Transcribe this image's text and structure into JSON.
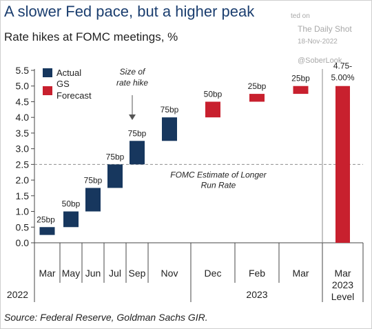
{
  "header": {
    "title": "A slower Fed pace, but a higher peak",
    "subtitle": "Rate hikes at FOMC meetings, %"
  },
  "watermark": {
    "line1": "ted on",
    "line2": "The Daily Shot",
    "line3": "18-Nov-2022",
    "line4": "@SoberLook"
  },
  "footer": {
    "source": "Source: Federal Reserve, Goldman Sachs GIR."
  },
  "colors": {
    "actual": "#17375e",
    "forecast": "#c8202e",
    "title": "#1b3e6f",
    "dashed_line": "#8c8c8c"
  },
  "chart_data": {
    "type": "bar",
    "subtype": "waterfall",
    "title": "Rate hikes at FOMC meetings, %",
    "xlabel": "",
    "ylabel": "",
    "ylim": [
      0,
      5.5
    ],
    "yticks": [
      "0.0",
      "0.5",
      "1.0",
      "1.5",
      "2.0",
      "2.5",
      "3.0",
      "3.5",
      "4.0",
      "4.5",
      "5.0",
      "5.5"
    ],
    "categories": [
      "Mar",
      "May",
      "Jun",
      "Jul",
      "Sep",
      "Nov",
      "Dec",
      "Feb",
      "Mar",
      "Mar 2023 Level"
    ],
    "year_labels": [
      "2022",
      "2023"
    ],
    "legend": [
      "Actual",
      "GS Forecast"
    ],
    "legend_position": "top-left",
    "grid": false,
    "series": [
      {
        "name": "Actual",
        "bars": [
          {
            "category": "Mar",
            "start": 0.25,
            "end": 0.5,
            "label": "25bp"
          },
          {
            "category": "May",
            "start": 0.5,
            "end": 1.0,
            "label": "50bp"
          },
          {
            "category": "Jun",
            "start": 1.0,
            "end": 1.75,
            "label": "75bp"
          },
          {
            "category": "Jul",
            "start": 1.75,
            "end": 2.5,
            "label": "75bp"
          },
          {
            "category": "Sep",
            "start": 2.5,
            "end": 3.25,
            "label": "75bp"
          },
          {
            "category": "Nov",
            "start": 3.25,
            "end": 4.0,
            "label": "75bp"
          }
        ]
      },
      {
        "name": "GS Forecast",
        "bars": [
          {
            "category": "Dec",
            "start": 4.0,
            "end": 4.5,
            "label": "50bp"
          },
          {
            "category": "Feb",
            "start": 4.5,
            "end": 4.75,
            "label": "25bp"
          },
          {
            "category": "Mar",
            "start": 4.75,
            "end": 5.0,
            "label": "25bp"
          },
          {
            "category": "Mar 2023 Level",
            "start": 0.0,
            "end": 5.0,
            "label": "4.75-5.00%"
          }
        ]
      }
    ],
    "reference_line": {
      "value": 2.5,
      "label": "FOMC Estimate of Longer Run Rate",
      "style": "dashed"
    },
    "annotations": [
      {
        "text": "Size of rate hike",
        "category": "Sep",
        "arrow": "down"
      }
    ]
  }
}
